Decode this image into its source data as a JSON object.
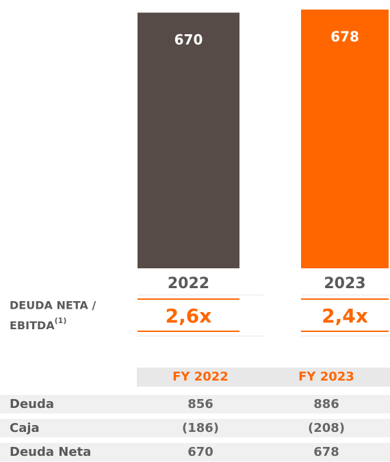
{
  "chart_data": {
    "type": "bar",
    "categories": [
      "2022",
      "2023"
    ],
    "values": [
      670,
      678
    ],
    "colors": [
      "#564b47",
      "#ff6600"
    ]
  },
  "ratio": {
    "label": "DEUDA NETA /",
    "label2": "EBITDA",
    "note": "(1)",
    "values": [
      "2,6x",
      "2,4x"
    ]
  },
  "table": {
    "columns": [
      "FY 2022",
      "FY 2023"
    ],
    "rows": [
      {
        "label": "Deuda",
        "cells": [
          "856",
          "886"
        ]
      },
      {
        "label": "Caja",
        "cells": [
          "(186)",
          "(208)"
        ]
      },
      {
        "label": "Deuda Neta",
        "cells": [
          "670",
          "678"
        ]
      }
    ]
  }
}
